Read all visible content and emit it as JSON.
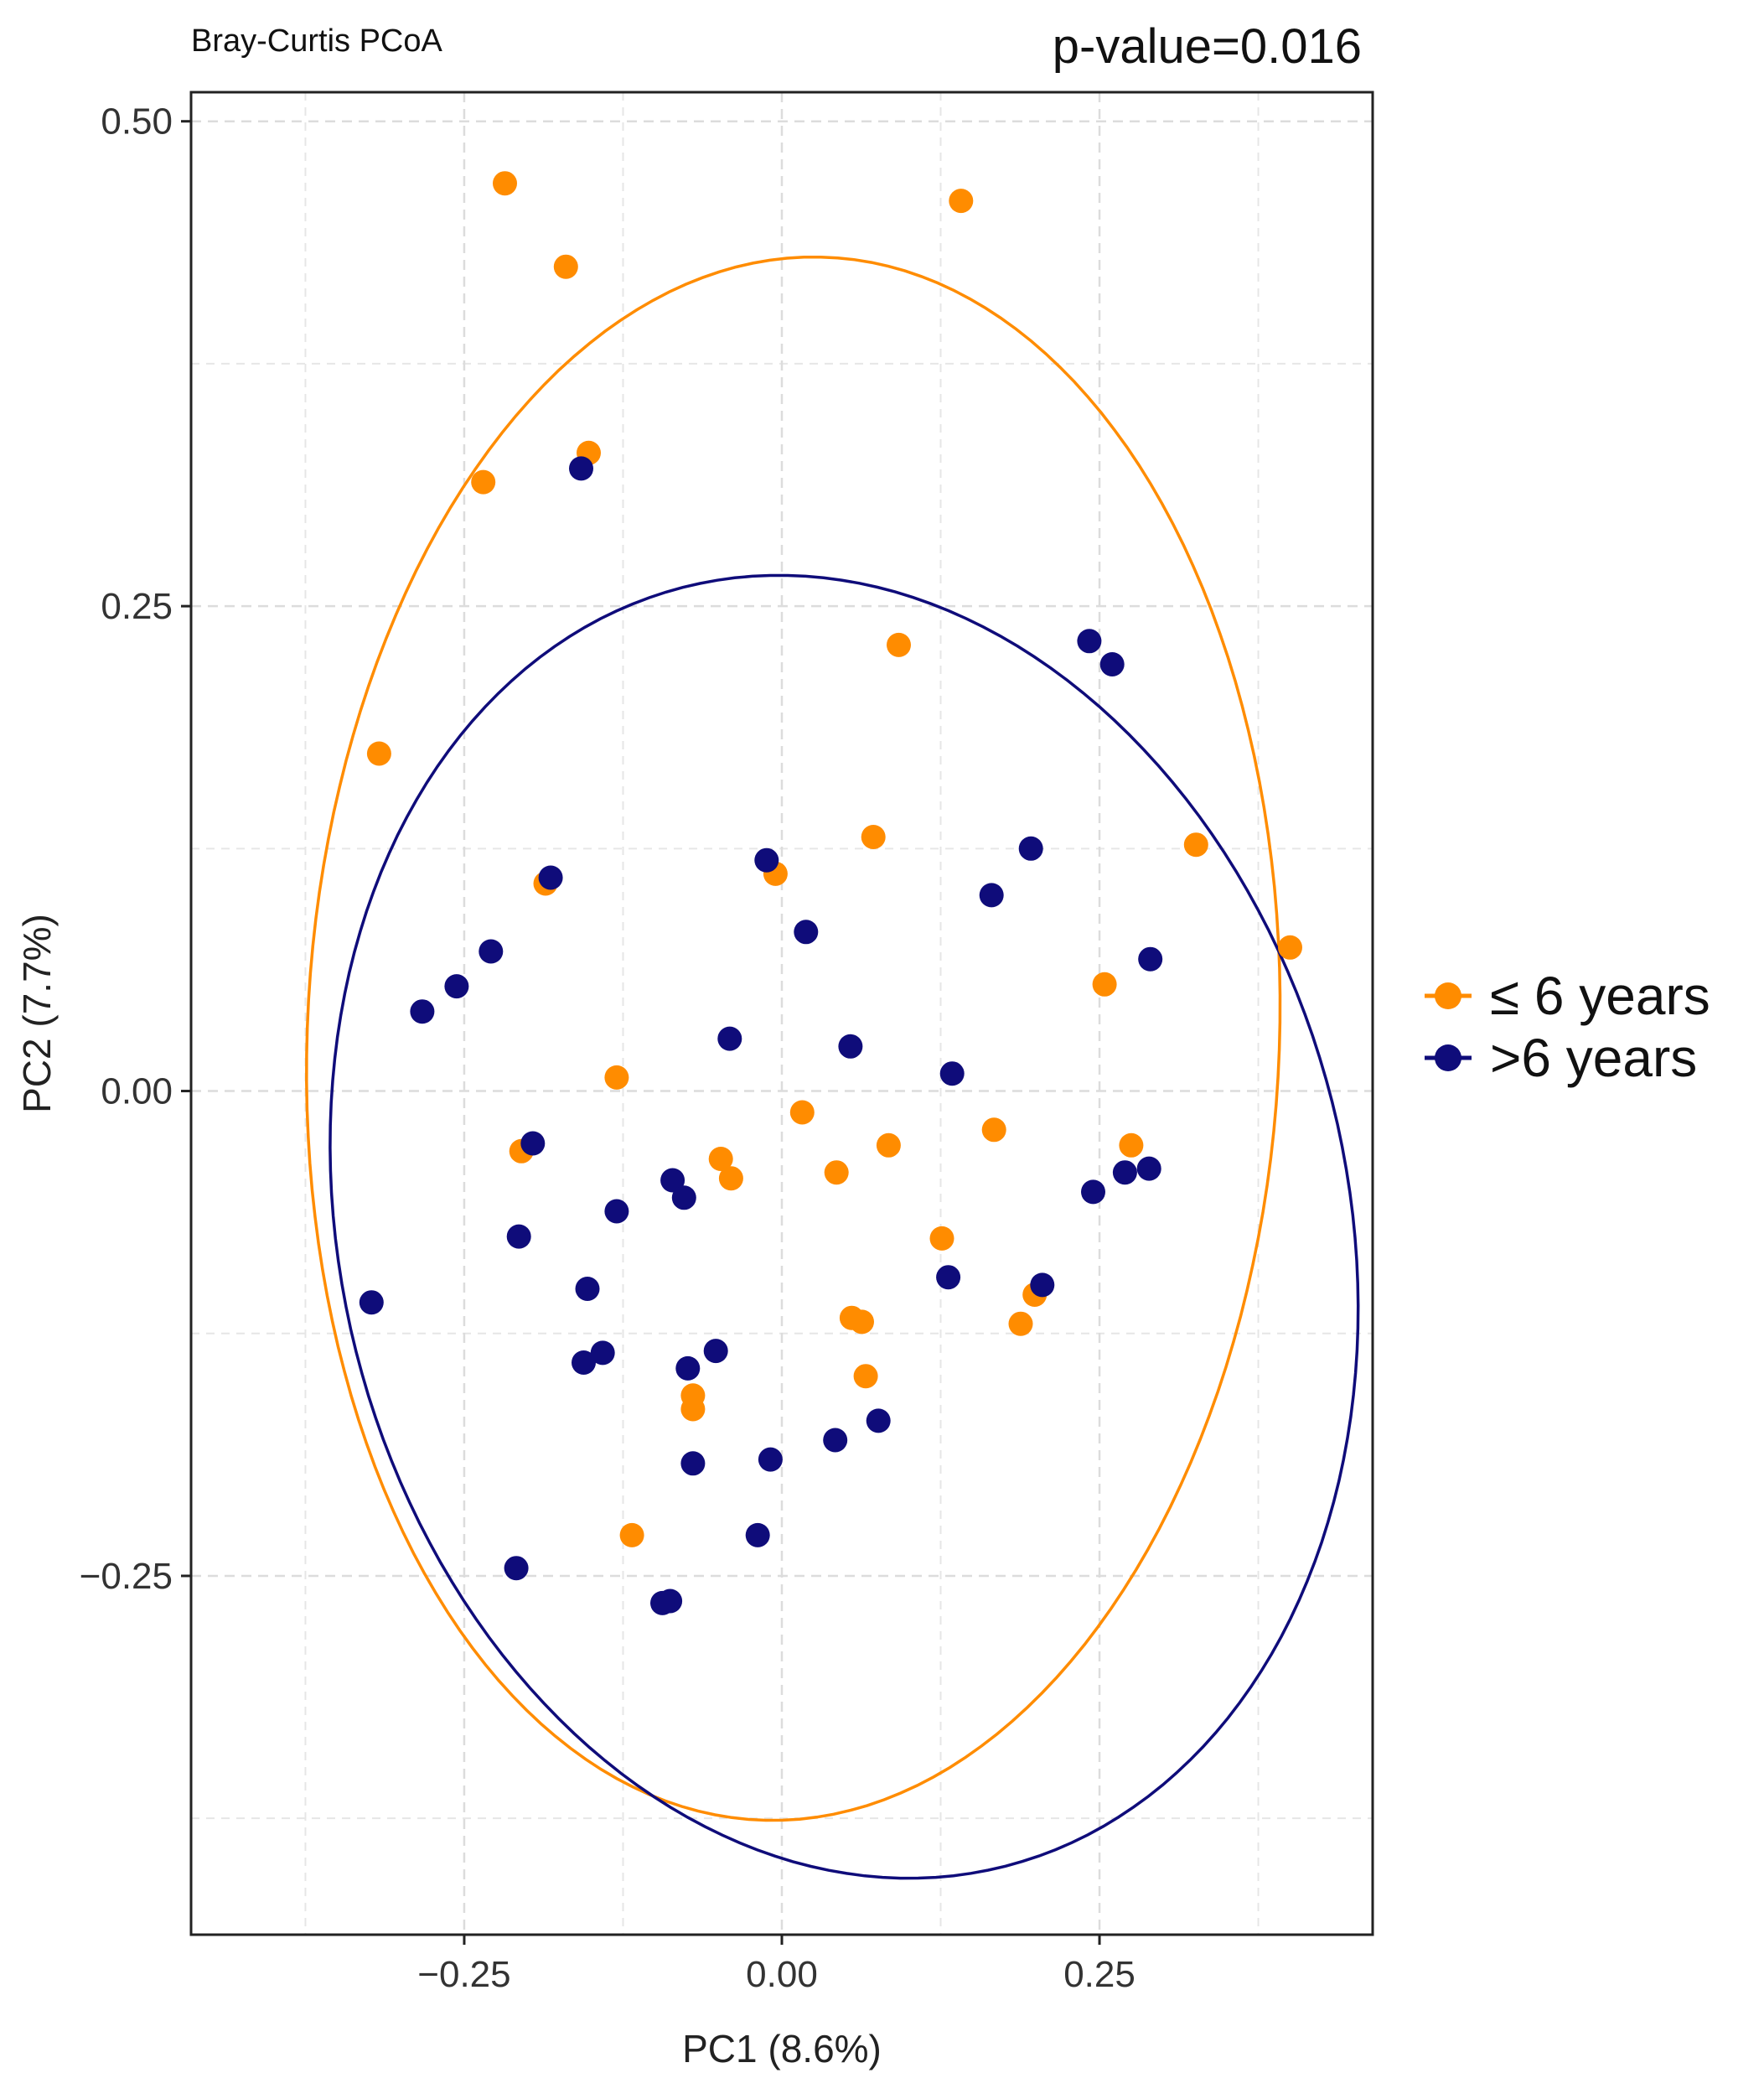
{
  "chart_data": {
    "type": "scatter",
    "title": "Bray-Curtis PCoA",
    "annotation": "p-value=0.016",
    "xlabel": "PC1 (8.6%)",
    "ylabel": "PC2 (7.7%)",
    "xlim": [
      -0.465,
      0.465
    ],
    "ylim": [
      -0.435,
      0.515
    ],
    "x_ticks": [
      -0.25,
      0,
      0.25
    ],
    "x_tick_labels": [
      "−0.25",
      "0.00",
      "0.25"
    ],
    "y_ticks": [
      -0.25,
      0,
      0.25,
      0.5
    ],
    "y_tick_labels": [
      "−0.25",
      "0.00",
      "0.25",
      "0.50"
    ],
    "grid": true,
    "legend_position": "right",
    "series": [
      {
        "name": "≤ 6 years",
        "color": "#FF8C00",
        "ellipse": {
          "cx": 0.009,
          "cy": 0.027,
          "rx": 0.406,
          "ry": 0.38,
          "angle_deg": 70
        },
        "points": [
          [
            -0.218,
            0.468
          ],
          [
            0.141,
            0.459
          ],
          [
            -0.17,
            0.425
          ],
          [
            -0.152,
            0.329
          ],
          [
            -0.235,
            0.314
          ],
          [
            0.092,
            0.23
          ],
          [
            -0.317,
            0.174
          ],
          [
            0.072,
            0.131
          ],
          [
            -0.186,
            0.107
          ],
          [
            -0.005,
            0.112
          ],
          [
            0.326,
            0.127
          ],
          [
            0.4,
            0.074
          ],
          [
            0.254,
            0.055
          ],
          [
            -0.13,
            0.007
          ],
          [
            0.016,
            -0.011
          ],
          [
            0.084,
            -0.028
          ],
          [
            0.167,
            -0.02
          ],
          [
            0.275,
            -0.028
          ],
          [
            -0.205,
            -0.031
          ],
          [
            -0.048,
            -0.035
          ],
          [
            -0.04,
            -0.045
          ],
          [
            0.043,
            -0.042
          ],
          [
            0.126,
            -0.076
          ],
          [
            0.199,
            -0.105
          ],
          [
            0.188,
            -0.12
          ],
          [
            0.055,
            -0.117
          ],
          [
            0.063,
            -0.119
          ],
          [
            0.066,
            -0.147
          ],
          [
            -0.07,
            -0.157
          ],
          [
            -0.07,
            -0.164
          ],
          [
            -0.118,
            -0.229
          ]
        ]
      },
      {
        "name": ">6 years",
        "color": "#0F0C7A",
        "ellipse": {
          "cx": 0.049,
          "cy": -0.07,
          "rx": 0.411,
          "ry": 0.328,
          "angle_deg": -17
        },
        "points": [
          [
            -0.158,
            0.321
          ],
          [
            0.242,
            0.232
          ],
          [
            0.26,
            0.22
          ],
          [
            -0.012,
            0.119
          ],
          [
            0.196,
            0.125
          ],
          [
            -0.182,
            0.11
          ],
          [
            0.165,
            0.101
          ],
          [
            0.019,
            0.082
          ],
          [
            -0.229,
            0.072
          ],
          [
            0.29,
            0.068
          ],
          [
            -0.256,
            0.054
          ],
          [
            -0.283,
            0.041
          ],
          [
            -0.041,
            0.027
          ],
          [
            0.054,
            0.023
          ],
          [
            0.134,
            0.009
          ],
          [
            -0.196,
            -0.027
          ],
          [
            -0.086,
            -0.046
          ],
          [
            -0.077,
            -0.055
          ],
          [
            0.27,
            -0.042
          ],
          [
            0.245,
            -0.052
          ],
          [
            0.289,
            -0.04
          ],
          [
            -0.13,
            -0.062
          ],
          [
            -0.207,
            -0.075
          ],
          [
            0.131,
            -0.096
          ],
          [
            0.205,
            -0.1
          ],
          [
            -0.153,
            -0.102
          ],
          [
            -0.323,
            -0.109
          ],
          [
            -0.141,
            -0.135
          ],
          [
            -0.156,
            -0.14
          ],
          [
            -0.052,
            -0.134
          ],
          [
            -0.074,
            -0.143
          ],
          [
            0.076,
            -0.17
          ],
          [
            0.042,
            -0.18
          ],
          [
            -0.07,
            -0.192
          ],
          [
            -0.009,
            -0.19
          ],
          [
            -0.019,
            -0.229
          ],
          [
            -0.209,
            -0.246
          ],
          [
            -0.088,
            -0.263
          ],
          [
            -0.094,
            -0.264
          ]
        ]
      }
    ]
  }
}
